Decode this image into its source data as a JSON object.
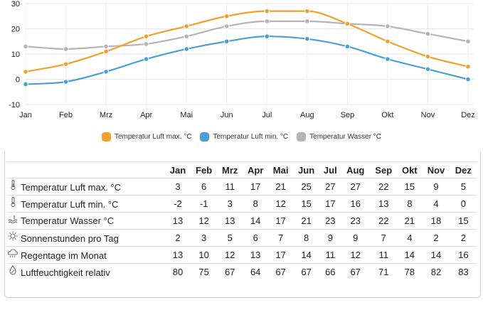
{
  "chart_data": {
    "type": "line",
    "categories": [
      "Jan",
      "Feb",
      "Mrz",
      "Apr",
      "Mai",
      "Jun",
      "Jul",
      "Aug",
      "Sep",
      "Okt",
      "Nov",
      "Dez"
    ],
    "series": [
      {
        "name": "Temperatur Luft max. °C",
        "color": "#f0a02b",
        "values": [
          3,
          6,
          11,
          17,
          21,
          25,
          27,
          27,
          22,
          15,
          9,
          5
        ]
      },
      {
        "name": "Temperatur Luft min. °C",
        "color": "#4a9fd8",
        "values": [
          -2,
          -1,
          3,
          8,
          12,
          15,
          17,
          16,
          13,
          8,
          4,
          0
        ]
      },
      {
        "name": "Temperatur Wasser °C",
        "color": "#b4b4b4",
        "values": [
          13,
          12,
          13,
          14,
          17,
          21,
          23,
          23,
          22,
          21,
          18,
          15
        ]
      }
    ],
    "ylim": [
      -10,
      30
    ],
    "yticks": [
      -10,
      0,
      10,
      20,
      30
    ],
    "xlabel": "",
    "ylabel": "",
    "grid": true,
    "legend": "bottom"
  },
  "table": {
    "months": [
      "Jan",
      "Feb",
      "Mrz",
      "Apr",
      "Mai",
      "Jun",
      "Jul",
      "Aug",
      "Sep",
      "Okt",
      "Nov",
      "Dez"
    ],
    "rows": [
      {
        "icon": "thermometer-icon",
        "label": "Temperatur Luft max. °C",
        "values": [
          "3",
          "6",
          "11",
          "17",
          "21",
          "25",
          "27",
          "27",
          "22",
          "15",
          "9",
          "5"
        ]
      },
      {
        "icon": "thermometer-icon",
        "label": "Temperatur Luft min. °C",
        "values": [
          "-2",
          "-1",
          "3",
          "8",
          "12",
          "15",
          "17",
          "16",
          "13",
          "8",
          "4",
          "0"
        ]
      },
      {
        "icon": "water-icon",
        "label": "Temperatur Wasser °C",
        "values": [
          "13",
          "12",
          "13",
          "14",
          "17",
          "21",
          "23",
          "23",
          "22",
          "21",
          "18",
          "15"
        ]
      },
      {
        "icon": "sun-icon",
        "label": "Sonnenstunden pro Tag",
        "values": [
          "2",
          "3",
          "5",
          "6",
          "7",
          "8",
          "9",
          "9",
          "7",
          "4",
          "2",
          "2"
        ]
      },
      {
        "icon": "rain-cloud-icon",
        "label": "Regentage im Monat",
        "values": [
          "13",
          "10",
          "12",
          "13",
          "17",
          "14",
          "11",
          "12",
          "11",
          "14",
          "14",
          "16"
        ]
      },
      {
        "icon": "humidity-drop-icon",
        "label": "Luftfeuchtigkeit relativ",
        "values": [
          "80",
          "75",
          "67",
          "64",
          "67",
          "67",
          "66",
          "67",
          "71",
          "78",
          "82",
          "83"
        ]
      }
    ]
  }
}
